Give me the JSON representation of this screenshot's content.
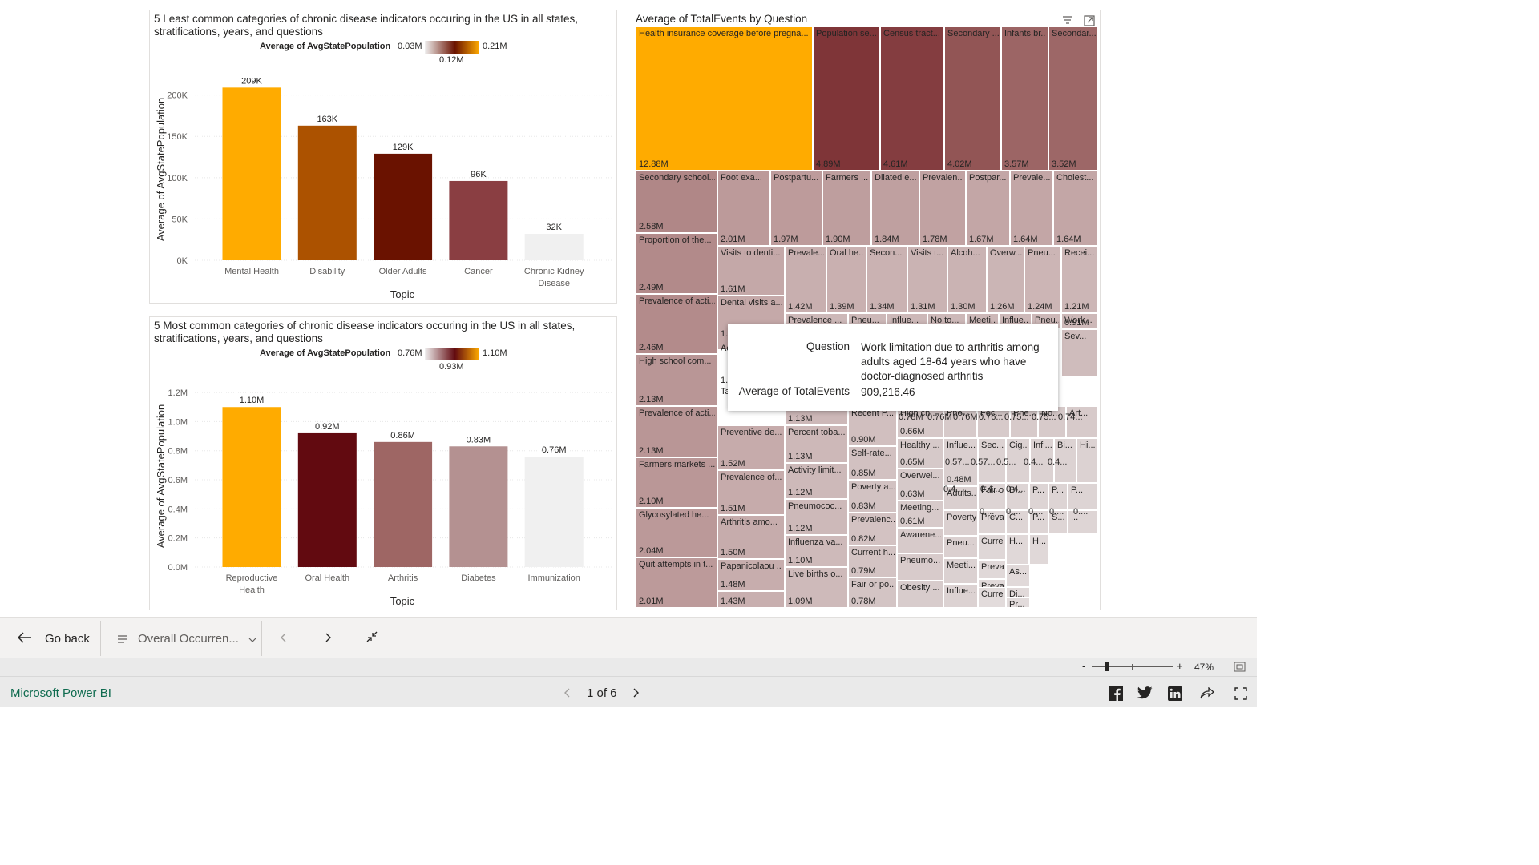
{
  "chart_data": [
    {
      "type": "bar",
      "title": "5 Least common categories of chronic disease indicators occuring in the US in all states, stratifications, years, and questions",
      "legend": {
        "title": "Average of AvgStatePopulation",
        "min": "0.03M",
        "mid": "0.12M",
        "max": "0.21M"
      },
      "categories": [
        "Mental Health",
        "Disability",
        "Older Adults",
        "Cancer",
        "Chronic Kidney Disease"
      ],
      "values": [
        209000,
        163000,
        129000,
        96000,
        32000
      ],
      "data_labels": [
        "209K",
        "163K",
        "129K",
        "96K",
        "32K"
      ],
      "colors": [
        "#ffab00",
        "#ac5200",
        "#6a1200",
        "#8a3e42",
        "#f0f0f0"
      ],
      "xlabel": "Topic",
      "ylabel": "Average of AvgStatePopulation",
      "yticks": [
        "0K",
        "50K",
        "100K",
        "150K",
        "200K"
      ],
      "ylim": [
        0,
        220000
      ]
    },
    {
      "type": "bar",
      "title": "5 Most common categories of chronic disease indicators occuring in the US in all states, stratifications, years, and questions",
      "legend": {
        "title": "Average of AvgStatePopulation",
        "min": "0.76M",
        "mid": "0.93M",
        "max": "1.10M"
      },
      "categories": [
        "Reproductive Health",
        "Oral Health",
        "Arthritis",
        "Diabetes",
        "Immunization"
      ],
      "values": [
        1100000,
        920000,
        860000,
        830000,
        760000
      ],
      "data_labels": [
        "1.10M",
        "0.92M",
        "0.86M",
        "0.83M",
        "0.76M"
      ],
      "colors": [
        "#ffab00",
        "#620a10",
        "#9e6664",
        "#b49191",
        "#f0f0f0"
      ],
      "xlabel": "Topic",
      "ylabel": "Average of AvgStatePopulation",
      "yticks": [
        "0.0M",
        "0.2M",
        "0.4M",
        "0.6M",
        "0.8M",
        "1.0M",
        "1.2M"
      ],
      "ylim": [
        0,
        1250000
      ]
    },
    {
      "type": "treemap",
      "title": "Average of TotalEvents by Question",
      "cells": [
        {
          "label": "Health insurance coverage before pregna...",
          "value": "12.88M",
          "color": "#ffab00"
        },
        {
          "label": "Population se...",
          "value": "4.89M",
          "color": "#7f3538"
        },
        {
          "label": "Census tract...",
          "value": "4.61M",
          "color": "#843d40"
        },
        {
          "label": "Secondary ...",
          "value": "4.02M",
          "color": "#925555"
        },
        {
          "label": "Infants br...",
          "value": "3.57M",
          "color": "#9c6565"
        },
        {
          "label": "Secondar...",
          "value": "3.52M",
          "color": "#9d6767"
        },
        {
          "label": "Secondary school...",
          "value": "2.58M",
          "color": "#b08787"
        },
        {
          "label": "Proportion of the...",
          "value": "2.49M",
          "color": "#b28a8a"
        },
        {
          "label": "Prevalence of acti...",
          "value": "2.46M",
          "color": "#b38b8b"
        },
        {
          "label": "High school com...",
          "value": "2.13M",
          "color": "#b99696"
        },
        {
          "label": "Prevalence of acti...",
          "value": "2.13M",
          "color": "#b99696"
        },
        {
          "label": "Farmers markets ...",
          "value": "2.10M",
          "color": "#ba9797"
        },
        {
          "label": "Glycosylated he...",
          "value": "2.04M",
          "color": "#bb9999"
        },
        {
          "label": "Quit attempts in t...",
          "value": "2.01M",
          "color": "#bc9a9a"
        },
        {
          "label": "Foot exa...",
          "value": "2.01M",
          "color": "#bc9a9a"
        },
        {
          "label": "Postpartu...",
          "value": "1.97M",
          "color": "#bd9b9b"
        },
        {
          "label": "Farmers ...",
          "value": "1.90M",
          "color": "#be9e9e"
        },
        {
          "label": "Dilated e...",
          "value": "1.84M",
          "color": "#bfa0a0"
        },
        {
          "label": "Prevalen...",
          "value": "1.78M",
          "color": "#c1a2a2"
        },
        {
          "label": "Postpar...",
          "value": "1.67M",
          "color": "#c3a6a6"
        },
        {
          "label": "Prevale...",
          "value": "1.64M",
          "color": "#c3a6a6"
        },
        {
          "label": "Cholest...",
          "value": "1.64M",
          "color": "#c3a6a6"
        },
        {
          "label": "Visits to denti...",
          "value": "1.61M",
          "color": "#c4a8a8"
        },
        {
          "label": "Dental visits a...",
          "value": "",
          "color": "#c5a9a9"
        },
        {
          "label": "Preventive de...",
          "value": "1.52M",
          "color": "#c6abab"
        },
        {
          "label": "Prevalence of...",
          "value": "1.51M",
          "color": "#c6abab"
        },
        {
          "label": "Arthritis amo...",
          "value": "1.50M",
          "color": "#c6acac"
        },
        {
          "label": "Papanicolaou ...",
          "value": "1.48M",
          "color": "#c7adad"
        },
        {
          "label": "",
          "value": "1.43M",
          "color": "#c8afaf"
        },
        {
          "label": "Prevale...",
          "value": "1.42M",
          "color": "#c8afaf"
        },
        {
          "label": "Oral he...",
          "value": "1.39M",
          "color": "#c9b0b0"
        },
        {
          "label": "Secon...",
          "value": "1.34M",
          "color": "#cab2b2"
        },
        {
          "label": "Visits t...",
          "value": "1.31M",
          "color": "#cab3b3"
        },
        {
          "label": "Alcoh...",
          "value": "1.30M",
          "color": "#cab3b3"
        },
        {
          "label": "Overw...",
          "value": "1.26M",
          "color": "#cbb5b5"
        },
        {
          "label": "Pneu...",
          "value": "1.24M",
          "color": "#ccb5b5"
        },
        {
          "label": "Recei...",
          "value": "1.21M",
          "color": "#ccb6b6"
        },
        {
          "label": "Prevalence ...",
          "value": "",
          "color": "#cdb8b8"
        },
        {
          "label": "Pneu...",
          "value": "",
          "color": "#cdb8b8"
        },
        {
          "label": "Influe...",
          "value": "",
          "color": "#cdb8b8"
        },
        {
          "label": "No to...",
          "value": "",
          "color": "#cdb8b8"
        },
        {
          "label": "Meeti...",
          "value": "",
          "color": "#cdb8b8"
        },
        {
          "label": "Influe...",
          "value": "",
          "color": "#cdb8b8"
        },
        {
          "label": "Pneu...",
          "value": "",
          "color": "#cdb8b8"
        },
        {
          "label": "Work...",
          "value": "0.91M",
          "color": "#cdb8b8"
        },
        {
          "label": "Sev...",
          "value": "",
          "color": "#cfbcbc"
        },
        {
          "label": "",
          "value": "1.13M",
          "color": "#cdb8b8"
        },
        {
          "label": "Percent toba...",
          "value": "1.13M",
          "color": "#cdb8b8"
        },
        {
          "label": "Activity limit...",
          "value": "1.12M",
          "color": "#cdb9b9"
        },
        {
          "label": "Pneumococ...",
          "value": "1.12M",
          "color": "#cdb9b9"
        },
        {
          "label": "Influenza va...",
          "value": "1.10M",
          "color": "#cebaba"
        },
        {
          "label": "Live births o...",
          "value": "1.09M",
          "color": "#cebaba"
        },
        {
          "label": "Recent P...",
          "value": "0.90M",
          "color": "#d1bfbf"
        },
        {
          "label": "Self-rate...",
          "value": "0.85M",
          "color": "#d2c1c1"
        },
        {
          "label": "Poverty a...",
          "value": "0.83M",
          "color": "#d2c2c2"
        },
        {
          "label": "Prevalenc...",
          "value": "0.82M",
          "color": "#d3c2c2"
        },
        {
          "label": "Current h...",
          "value": "0.79M",
          "color": "#d3c3c3"
        },
        {
          "label": "Fair or po...",
          "value": "0.78M",
          "color": "#d3c4c4"
        },
        {
          "label": "High ch...",
          "value": "0.66M",
          "color": "#d6c8c8"
        },
        {
          "label": "Healthy ...",
          "value": "0.65M",
          "color": "#d6c9c9"
        },
        {
          "label": "Overwei...",
          "value": "0.63M",
          "color": "#d6c9c9"
        },
        {
          "label": "Meeting...",
          "value": "0.61M",
          "color": "#d7caca"
        },
        {
          "label": "Awarene...",
          "value": "",
          "color": "#d7caca"
        },
        {
          "label": "Pneumo...",
          "value": "",
          "color": "#d8cbcb"
        },
        {
          "label": "Obesity ...",
          "value": "",
          "color": "#d8cccc"
        },
        {
          "label": "Pne...",
          "value": "",
          "color": "#d7caca"
        },
        {
          "label": "Fec...",
          "value": "",
          "color": "#d7caca"
        },
        {
          "label": "Pne...",
          "value": "",
          "color": "#d7caca"
        },
        {
          "label": "No...",
          "value": "",
          "color": "#d7caca"
        },
        {
          "label": "Art...",
          "value": "",
          "color": "#d7caca"
        },
        {
          "label": "Influe...",
          "value": "0.48M",
          "color": "#dacfcf"
        },
        {
          "label": "Adults...",
          "value": "",
          "color": "#dacfcf"
        },
        {
          "label": "Poverty",
          "value": "",
          "color": "#dbd0d0"
        },
        {
          "label": "Pneu...",
          "value": "",
          "color": "#dbd0d0"
        },
        {
          "label": "Meeti...",
          "value": "",
          "color": "#dbd1d1"
        },
        {
          "label": "Influe...",
          "value": "",
          "color": "#dcd2d2"
        },
        {
          "label": "Sec...",
          "value": "",
          "color": "#dcd2d2"
        },
        {
          "label": "Cig...",
          "value": "",
          "color": "#dcd2d2"
        },
        {
          "label": "Infl...",
          "value": "",
          "color": "#dcd2d2"
        },
        {
          "label": "Bi...",
          "value": "",
          "color": "#dcd2d2"
        },
        {
          "label": "Hi...",
          "value": "",
          "color": "#dcd2d2"
        },
        {
          "label": "Fair o...",
          "value": "",
          "color": "#ddd4d4"
        },
        {
          "label": "B...",
          "value": "",
          "color": "#ddd4d4"
        },
        {
          "label": "P...",
          "value": "",
          "color": "#ddd4d4"
        },
        {
          "label": "P...",
          "value": "",
          "color": "#ddd4d4"
        },
        {
          "label": "P...",
          "value": "",
          "color": "#ddd4d4"
        },
        {
          "label": "Preval...",
          "value": "",
          "color": "#ded5d5"
        },
        {
          "label": "C...",
          "value": "",
          "color": "#ded5d5"
        },
        {
          "label": "P...",
          "value": "",
          "color": "#ded5d5"
        },
        {
          "label": "S...",
          "value": "",
          "color": "#ded5d5"
        },
        {
          "label": "...",
          "value": "",
          "color": "#ded5d5"
        },
        {
          "label": "Curre...",
          "value": "",
          "color": "#dfd7d7"
        },
        {
          "label": "Preval...",
          "value": "",
          "color": "#e0d8d8"
        },
        {
          "label": "H...",
          "value": "",
          "color": "#e0d8d8"
        },
        {
          "label": "H...",
          "value": "",
          "color": "#e0d8d8"
        },
        {
          "label": "As...",
          "value": "",
          "color": "#e1d9d9"
        },
        {
          "label": "Preval...",
          "value": "",
          "color": "#e1d9d9"
        },
        {
          "label": "Di...",
          "value": "",
          "color": "#e1d9d9"
        },
        {
          "label": "Curre...",
          "value": "",
          "color": "#e2dbdb"
        },
        {
          "label": "Pr...",
          "value": "",
          "color": "#e2dbdb"
        }
      ],
      "inline_values": [
        "0.78M",
        "0.76M",
        "0.76M",
        "0.76...",
        "0.75...",
        "0.75...",
        "0.74...",
        "0.57...",
        "0.57...",
        "0.5...",
        "0.4...",
        "0.4...",
        "0.4...",
        "0.4...",
        "0.4...",
        "0....",
        "0....",
        "0....",
        "0....",
        "0....",
        "1.5",
        "1.5",
        "Ac",
        "Ta"
      ]
    }
  ],
  "tooltip": {
    "question_key": "Question",
    "question_value": "Work limitation due to arthritis among adults aged 18-64 years who have doctor-diagnosed arthritis",
    "events_key": "Average of TotalEvents",
    "events_value": "909,216.46"
  },
  "navbar": {
    "go_back": "Go back",
    "page_select": "Overall Occurren..."
  },
  "zoom": {
    "value": "47%",
    "minus": "-",
    "plus": "+"
  },
  "footer": {
    "brand": "Microsoft Power BI",
    "page_indicator": "1 of 6"
  },
  "colors": {
    "accent": "#ffab00",
    "brand_link": "#0f6b4f"
  }
}
